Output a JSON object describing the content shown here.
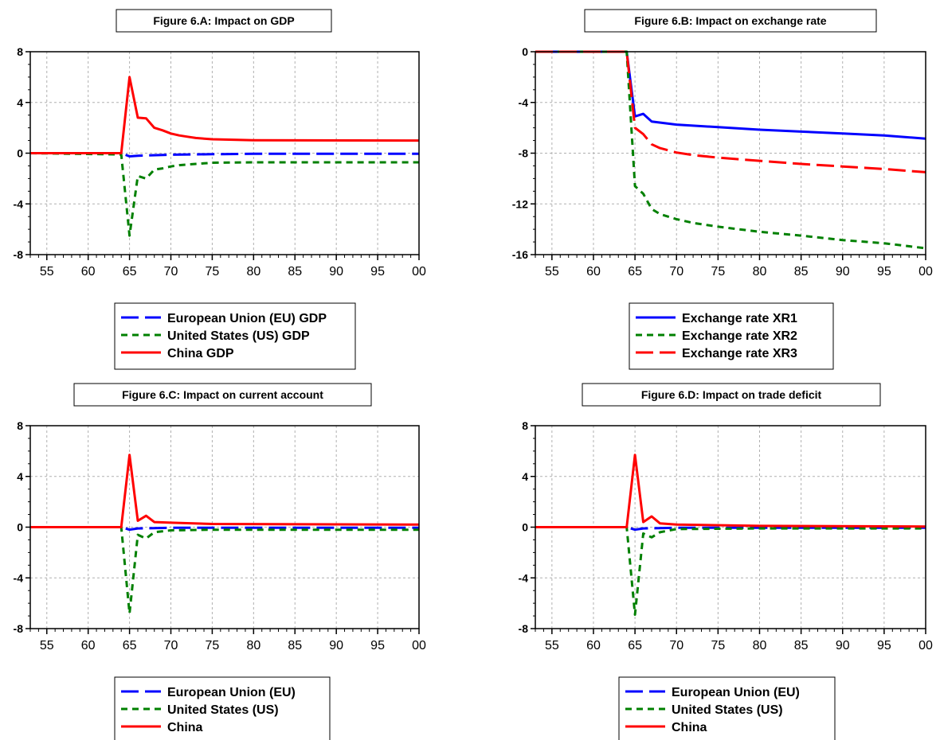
{
  "chart_data": [
    {
      "type": "line",
      "title": "Figure 6.A: Impact on GDP",
      "xlabel": "",
      "ylabel": "",
      "xlim": [
        1953,
        2000
      ],
      "ylim": [
        -8,
        8
      ],
      "yticks": [
        8,
        4,
        0,
        -4,
        -8
      ],
      "ytick_labels": [
        "8",
        "4",
        "0",
        "-4",
        "-8"
      ],
      "xticks": [
        1955,
        1960,
        1965,
        1970,
        1975,
        1980,
        1985,
        1990,
        1995,
        2000
      ],
      "xtick_labels": [
        "55",
        "60",
        "65",
        "70",
        "75",
        "80",
        "85",
        "90",
        "95",
        "00"
      ],
      "grid": true,
      "legend": "below",
      "series": [
        {
          "name": "European Union (EU) GDP",
          "color": "#0000ff",
          "dash": "long",
          "points": [
            [
              1953,
              0
            ],
            [
              1964,
              0
            ],
            [
              1965,
              -0.25
            ],
            [
              1966,
              -0.2
            ],
            [
              1967,
              -0.18
            ],
            [
              1970,
              -0.12
            ],
            [
              1975,
              -0.08
            ],
            [
              1980,
              -0.05
            ],
            [
              2000,
              -0.05
            ]
          ]
        },
        {
          "name": "United States (US) GDP",
          "color": "#008000",
          "dash": "short",
          "points": [
            [
              1953,
              0
            ],
            [
              1964,
              -0.1
            ],
            [
              1965,
              -6.5
            ],
            [
              1966,
              -1.8
            ],
            [
              1967,
              -2.0
            ],
            [
              1968,
              -1.3
            ],
            [
              1969,
              -1.2
            ],
            [
              1970,
              -1.05
            ],
            [
              1971,
              -0.95
            ],
            [
              1972,
              -0.9
            ],
            [
              1973,
              -0.85
            ],
            [
              1974,
              -0.8
            ],
            [
              1975,
              -0.75
            ],
            [
              1980,
              -0.72
            ],
            [
              2000,
              -0.72
            ]
          ]
        },
        {
          "name": "China GDP",
          "color": "#ff0000",
          "dash": "solid",
          "points": [
            [
              1953,
              0
            ],
            [
              1964,
              0
            ],
            [
              1965,
              6.0
            ],
            [
              1966,
              2.8
            ],
            [
              1967,
              2.75
            ],
            [
              1968,
              2.0
            ],
            [
              1969,
              1.8
            ],
            [
              1970,
              1.55
            ],
            [
              1971,
              1.4
            ],
            [
              1972,
              1.3
            ],
            [
              1973,
              1.2
            ],
            [
              1974,
              1.15
            ],
            [
              1975,
              1.1
            ],
            [
              1978,
              1.05
            ],
            [
              1980,
              1.02
            ],
            [
              2000,
              1.0
            ]
          ]
        }
      ]
    },
    {
      "type": "line",
      "title": "Figure 6.B: Impact on exchange rate",
      "xlabel": "",
      "ylabel": "",
      "xlim": [
        1953,
        2000
      ],
      "ylim": [
        -16,
        0
      ],
      "yticks": [
        0,
        -4,
        -8,
        -12,
        -16
      ],
      "ytick_labels": [
        "0",
        "-4",
        "-8",
        "-12",
        "-16"
      ],
      "xticks": [
        1955,
        1960,
        1965,
        1970,
        1975,
        1980,
        1985,
        1990,
        1995,
        2000
      ],
      "xtick_labels": [
        "55",
        "60",
        "65",
        "70",
        "75",
        "80",
        "85",
        "90",
        "95",
        "00"
      ],
      "grid": true,
      "legend": "below",
      "series": [
        {
          "name": "Exchange rate XR1",
          "color": "#0000ff",
          "dash": "solid",
          "points": [
            [
              1953,
              0
            ],
            [
              1964,
              0
            ],
            [
              1965,
              -5.1
            ],
            [
              1966,
              -4.9
            ],
            [
              1967,
              -5.5
            ],
            [
              1970,
              -5.75
            ],
            [
              1975,
              -5.95
            ],
            [
              1980,
              -6.15
            ],
            [
              1985,
              -6.3
            ],
            [
              1990,
              -6.45
            ],
            [
              1995,
              -6.6
            ],
            [
              2000,
              -6.85
            ]
          ]
        },
        {
          "name": "Exchange rate XR2",
          "color": "#008000",
          "dash": "short",
          "points": [
            [
              1953,
              0
            ],
            [
              1964,
              0
            ],
            [
              1965,
              -10.6
            ],
            [
              1966,
              -11.2
            ],
            [
              1967,
              -12.4
            ],
            [
              1968,
              -12.8
            ],
            [
              1970,
              -13.2
            ],
            [
              1972,
              -13.5
            ],
            [
              1975,
              -13.8
            ],
            [
              1980,
              -14.2
            ],
            [
              1985,
              -14.5
            ],
            [
              1990,
              -14.85
            ],
            [
              1995,
              -15.1
            ],
            [
              2000,
              -15.5
            ]
          ]
        },
        {
          "name": "Exchange rate XR3",
          "color": "#ff0000",
          "dash": "long",
          "points": [
            [
              1953,
              0
            ],
            [
              1964,
              0
            ],
            [
              1965,
              -6.0
            ],
            [
              1966,
              -6.5
            ],
            [
              1967,
              -7.3
            ],
            [
              1968,
              -7.6
            ],
            [
              1970,
              -7.95
            ],
            [
              1972,
              -8.15
            ],
            [
              1975,
              -8.35
            ],
            [
              1980,
              -8.6
            ],
            [
              1985,
              -8.85
            ],
            [
              1990,
              -9.05
            ],
            [
              1995,
              -9.25
            ],
            [
              2000,
              -9.5
            ]
          ]
        }
      ]
    },
    {
      "type": "line",
      "title": "Figure 6.C: Impact on current account",
      "xlabel": "",
      "ylabel": "",
      "xlim": [
        1953,
        2000
      ],
      "ylim": [
        -8,
        8
      ],
      "yticks": [
        8,
        4,
        0,
        -4,
        -8
      ],
      "ytick_labels": [
        "8",
        "4",
        "0",
        "-4",
        "-8"
      ],
      "xticks": [
        1955,
        1960,
        1965,
        1970,
        1975,
        1980,
        1985,
        1990,
        1995,
        2000
      ],
      "xtick_labels": [
        "55",
        "60",
        "65",
        "70",
        "75",
        "80",
        "85",
        "90",
        "95",
        "00"
      ],
      "grid": true,
      "legend": "below",
      "series": [
        {
          "name": "European Union (EU)",
          "color": "#0000ff",
          "dash": "long",
          "points": [
            [
              1953,
              0
            ],
            [
              1964,
              0
            ],
            [
              1965,
              -0.2
            ],
            [
              1966,
              -0.1
            ],
            [
              1970,
              -0.05
            ],
            [
              2000,
              -0.05
            ]
          ]
        },
        {
          "name": "United States (US)",
          "color": "#008000",
          "dash": "short",
          "points": [
            [
              1953,
              0
            ],
            [
              1964,
              0
            ],
            [
              1965,
              -6.8
            ],
            [
              1966,
              -0.6
            ],
            [
              1967,
              -0.9
            ],
            [
              1968,
              -0.4
            ],
            [
              1970,
              -0.25
            ],
            [
              1975,
              -0.2
            ],
            [
              2000,
              -0.2
            ]
          ]
        },
        {
          "name": "China",
          "color": "#ff0000",
          "dash": "solid",
          "points": [
            [
              1953,
              0
            ],
            [
              1964,
              0
            ],
            [
              1965,
              5.7
            ],
            [
              1966,
              0.5
            ],
            [
              1967,
              0.9
            ],
            [
              1968,
              0.4
            ],
            [
              1970,
              0.35
            ],
            [
              1975,
              0.25
            ],
            [
              2000,
              0.2
            ]
          ]
        }
      ]
    },
    {
      "type": "line",
      "title": "Figure 6.D: Impact on trade deficit",
      "xlabel": "",
      "ylabel": "",
      "xlim": [
        1953,
        2000
      ],
      "ylim": [
        -8,
        8
      ],
      "yticks": [
        8,
        4,
        0,
        -4,
        -8
      ],
      "ytick_labels": [
        "8",
        "4",
        "0",
        "-4",
        "-8"
      ],
      "xticks": [
        1955,
        1960,
        1965,
        1970,
        1975,
        1980,
        1985,
        1990,
        1995,
        2000
      ],
      "xtick_labels": [
        "55",
        "60",
        "65",
        "70",
        "75",
        "80",
        "85",
        "90",
        "95",
        "00"
      ],
      "grid": true,
      "legend": "below",
      "series": [
        {
          "name": "European Union (EU)",
          "color": "#0000ff",
          "dash": "long",
          "points": [
            [
              1953,
              0
            ],
            [
              1964,
              0
            ],
            [
              1965,
              -0.2
            ],
            [
              1966,
              -0.1
            ],
            [
              1970,
              -0.05
            ],
            [
              2000,
              -0.05
            ]
          ]
        },
        {
          "name": "United States (US)",
          "color": "#008000",
          "dash": "short",
          "points": [
            [
              1953,
              0
            ],
            [
              1964,
              0
            ],
            [
              1965,
              -6.9
            ],
            [
              1966,
              -0.5
            ],
            [
              1967,
              -0.8
            ],
            [
              1968,
              -0.4
            ],
            [
              1970,
              -0.15
            ],
            [
              1980,
              -0.1
            ],
            [
              2000,
              -0.1
            ]
          ]
        },
        {
          "name": "China",
          "color": "#ff0000",
          "dash": "solid",
          "points": [
            [
              1953,
              0
            ],
            [
              1964,
              0
            ],
            [
              1965,
              5.7
            ],
            [
              1966,
              0.4
            ],
            [
              1967,
              0.85
            ],
            [
              1968,
              0.3
            ],
            [
              1970,
              0.2
            ],
            [
              1980,
              0.1
            ],
            [
              2000,
              0.05
            ]
          ]
        }
      ]
    }
  ]
}
